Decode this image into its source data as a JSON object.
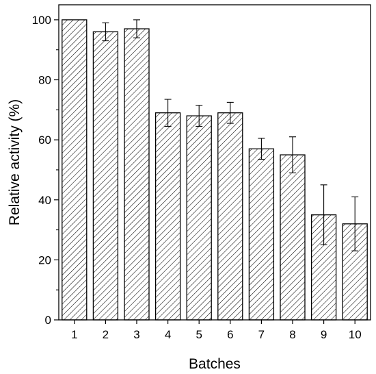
{
  "chart_data": {
    "type": "bar",
    "xlabel": "Batches",
    "ylabel": "Relative activity (%)",
    "ylim": [
      0,
      105
    ],
    "yticks": [
      0,
      20,
      40,
      60,
      80,
      100
    ],
    "grid": false,
    "bar_fill": "diagonal-hatch",
    "colors": {
      "bar_stroke": "#000000",
      "hatch": "#000000",
      "background": "#ffffff"
    },
    "categories": [
      "1",
      "2",
      "3",
      "4",
      "5",
      "6",
      "7",
      "8",
      "9",
      "10"
    ],
    "values": [
      100,
      96,
      97,
      69,
      68,
      69,
      57,
      55,
      35,
      32
    ],
    "error": [
      0,
      3,
      3,
      4.5,
      3.5,
      3.5,
      3.5,
      6,
      10,
      9
    ]
  }
}
